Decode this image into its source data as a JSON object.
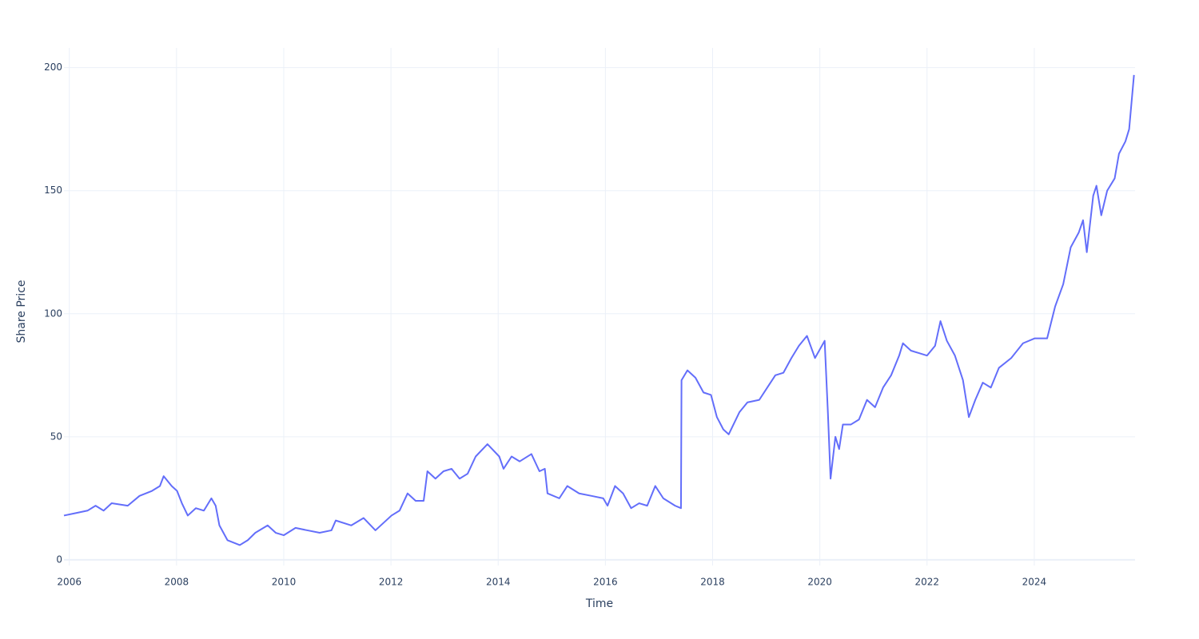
{
  "chart_data": {
    "type": "line",
    "x_label": "Time",
    "y_label": "Share Price",
    "x": [
      2005.9,
      2006.12,
      2006.34,
      2006.49,
      2006.64,
      2006.79,
      2007.09,
      2007.31,
      2007.54,
      2007.69,
      2007.76,
      2007.91,
      2008.01,
      2008.1,
      2008.21,
      2008.36,
      2008.51,
      2008.65,
      2008.73,
      2008.8,
      2008.95,
      2009.18,
      2009.33,
      2009.47,
      2009.7,
      2009.85,
      2010.0,
      2010.22,
      2010.44,
      2010.67,
      2010.89,
      2010.97,
      2011.26,
      2011.49,
      2011.71,
      2011.86,
      2012.01,
      2012.16,
      2012.31,
      2012.46,
      2012.61,
      2012.68,
      2012.83,
      2012.98,
      2013.13,
      2013.28,
      2013.43,
      2013.58,
      2013.8,
      2014.02,
      2014.1,
      2014.25,
      2014.4,
      2014.62,
      2014.77,
      2014.87,
      2014.92,
      2015.14,
      2015.29,
      2015.51,
      2015.74,
      2015.96,
      2016.04,
      2016.18,
      2016.33,
      2016.48,
      2016.63,
      2016.78,
      2016.93,
      2017.08,
      2017.3,
      2017.41,
      2017.42,
      2017.53,
      2017.68,
      2017.83,
      2017.97,
      2018.08,
      2018.2,
      2018.3,
      2018.5,
      2018.65,
      2018.87,
      2019.02,
      2019.17,
      2019.32,
      2019.47,
      2019.61,
      2019.76,
      2019.91,
      2020.09,
      2020.15,
      2020.2,
      2020.29,
      2020.36,
      2020.43,
      2020.58,
      2020.73,
      2020.88,
      2021.03,
      2021.18,
      2021.33,
      2021.48,
      2021.55,
      2021.7,
      2021.85,
      2022.0,
      2022.15,
      2022.25,
      2022.37,
      2022.52,
      2022.67,
      2022.78,
      2022.9,
      2023.04,
      2023.19,
      2023.34,
      2023.57,
      2023.79,
      2024.01,
      2024.24,
      2024.39,
      2024.54,
      2024.68,
      2024.83,
      2024.91,
      2024.98,
      2025.1,
      2025.16,
      2025.25,
      2025.36,
      2025.5,
      2025.58,
      2025.7,
      2025.77,
      2025.86
    ],
    "values": [
      18,
      19,
      20,
      22,
      20,
      23,
      22,
      26,
      28,
      30,
      34,
      30,
      28,
      23,
      18,
      21,
      20,
      25,
      22,
      14,
      8,
      6,
      8,
      11,
      14,
      11,
      10,
      13,
      12,
      11,
      12,
      16,
      14,
      17,
      12,
      15,
      18,
      20,
      27,
      24,
      24,
      36,
      33,
      36,
      37,
      33,
      35,
      42,
      47,
      42,
      37,
      42,
      40,
      43,
      36,
      37,
      27,
      25,
      30,
      27,
      26,
      25,
      22,
      30,
      27,
      21,
      23,
      22,
      30,
      25,
      22,
      21,
      73,
      77,
      74,
      68,
      67,
      58,
      53,
      51,
      60,
      64,
      65,
      70,
      75,
      76,
      82,
      87,
      91,
      82,
      89,
      60,
      33,
      50,
      45,
      55,
      55,
      57,
      65,
      62,
      70,
      75,
      83,
      88,
      85,
      84,
      83,
      87,
      97,
      89,
      83,
      73,
      58,
      65,
      72,
      70,
      78,
      82,
      88,
      90,
      90,
      103,
      112,
      127,
      133,
      138,
      125,
      148,
      152,
      140,
      150,
      155,
      165,
      170,
      175,
      197
    ],
    "color": "#636efa",
    "xlim": [
      2005.9,
      2025.88
    ],
    "xticks": [
      2006,
      2008,
      2010,
      2012,
      2014,
      2016,
      2018,
      2020,
      2022,
      2024
    ],
    "ylim": [
      -2.3,
      208
    ],
    "yticks": [
      0,
      50,
      100,
      150,
      200
    ],
    "grid": true
  }
}
